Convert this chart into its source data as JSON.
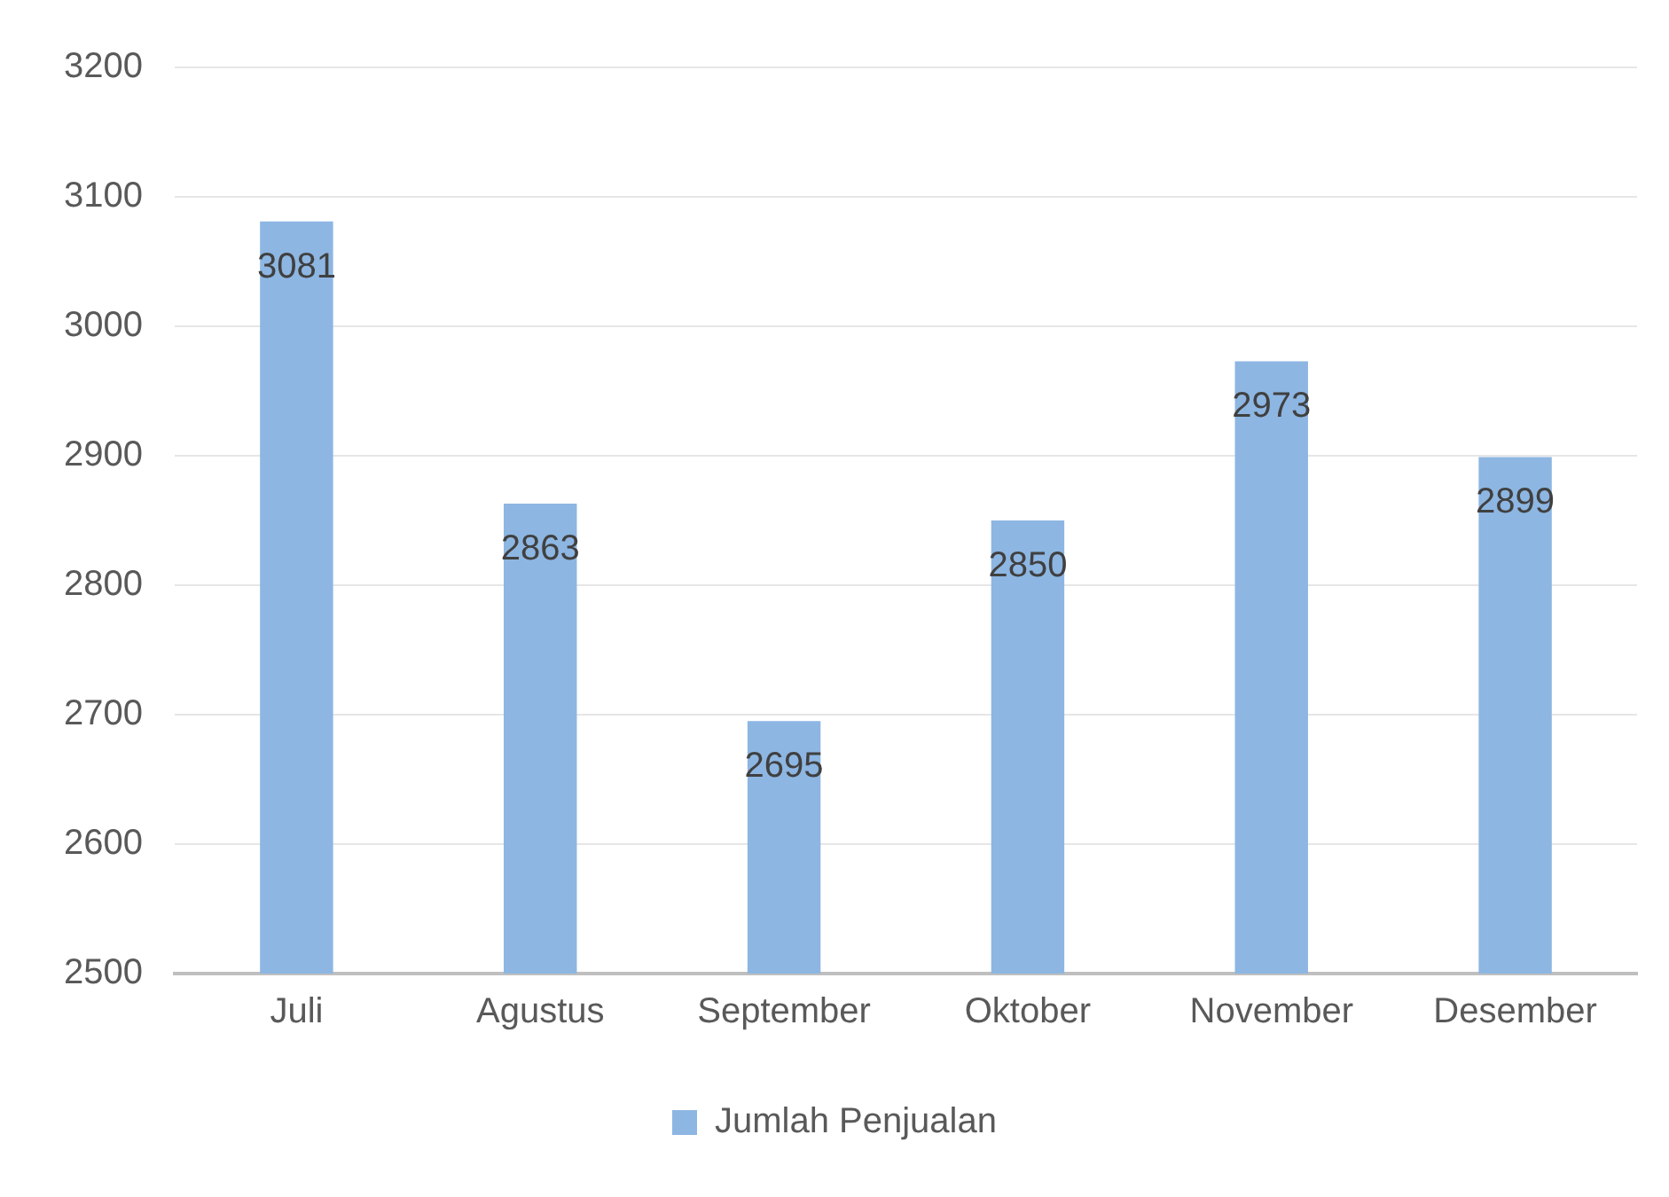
{
  "chart_data": {
    "type": "bar",
    "categories": [
      "Juli",
      "Agustus",
      "September",
      "Oktober",
      "November",
      "Desember"
    ],
    "series": [
      {
        "name": "Jumlah Penjualan",
        "color": "#8db6e2",
        "values": [
          3081,
          2863,
          2695,
          2850,
          2973,
          2899
        ]
      }
    ],
    "ylim": [
      2500,
      3200
    ],
    "yticks": [
      2500,
      2600,
      2700,
      2800,
      2900,
      3000,
      3100,
      3200
    ],
    "grid": "y",
    "legend": "bottom",
    "data_labels": true
  }
}
